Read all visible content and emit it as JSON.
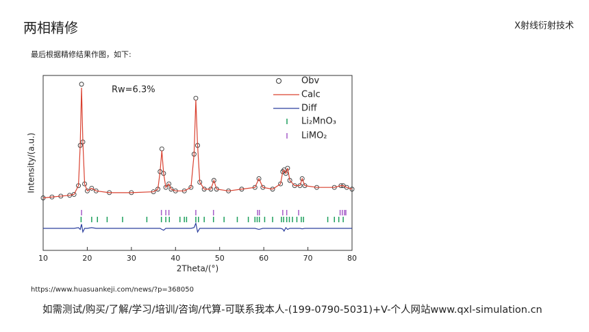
{
  "header": {
    "title": "两相精修",
    "topic": "X射线衍射技术"
  },
  "intro": "最后根据精修结果作图，如下:",
  "chart_data": {
    "type": "line",
    "xlabel": "2Theta/(°)",
    "ylabel": "Intensity/(a.u.)",
    "annotation": "Rw=6.3%",
    "xlim": [
      10,
      80
    ],
    "xticks": [
      10,
      20,
      30,
      40,
      50,
      60,
      70,
      80
    ],
    "ylim": [
      0,
      100
    ],
    "x": [
      10,
      12,
      14,
      16,
      17,
      18,
      18.4,
      18.7,
      19,
      19.4,
      20,
      21,
      22,
      25,
      30,
      35,
      36,
      36.5,
      36.9,
      37.3,
      37.8,
      38.5,
      39,
      40,
      42,
      43.5,
      44.2,
      44.6,
      45,
      45.5,
      46.5,
      48,
      48.7,
      49.3,
      52,
      55,
      58,
      58.9,
      59.8,
      62,
      63.8,
      64.3,
      64.6,
      65,
      65.4,
      65.9,
      67,
      68.2,
      68.7,
      69.3,
      72,
      76,
      77.5,
      78,
      78.8,
      80
    ],
    "series": [
      {
        "name": "Obv",
        "color": "#333333",
        "style": "marker",
        "values": [
          30,
          30.5,
          31,
          31.5,
          32,
          37,
          60,
          95,
          62,
          38,
          34,
          35.5,
          34,
          33,
          33,
          33.5,
          35,
          45,
          58,
          44,
          36,
          38,
          35,
          34,
          34,
          36,
          55,
          87,
          60,
          39,
          35,
          35,
          40,
          35,
          34,
          35,
          36,
          41,
          36,
          35,
          38,
          45,
          46,
          44,
          47,
          40,
          37,
          37,
          41,
          37,
          36,
          36,
          37,
          37,
          36,
          35
        ]
      },
      {
        "name": "Calc",
        "color": "#d9402f",
        "style": "line",
        "values": [
          30,
          30.5,
          31,
          31.5,
          32,
          37,
          60,
          93,
          62,
          38,
          34,
          35.5,
          34,
          33,
          33,
          33.5,
          35,
          45,
          57,
          44,
          36,
          38,
          35,
          34,
          34,
          36,
          55,
          86,
          60,
          39,
          35,
          35,
          40,
          35,
          34,
          35,
          36,
          41,
          36,
          35,
          38,
          45,
          46,
          44,
          47,
          40,
          37,
          37,
          41,
          37,
          36,
          36,
          37,
          37,
          36,
          35
        ]
      },
      {
        "name": "Diff",
        "color": "#2b3f9e",
        "style": "line",
        "values": [
          12.6,
          12.6,
          12.6,
          12.6,
          12.6,
          13,
          12,
          15,
          10.5,
          12.6,
          12.6,
          13,
          12.6,
          12.6,
          12.6,
          12.6,
          12.6,
          12.6,
          12,
          11.5,
          12.6,
          12.6,
          12.6,
          12.6,
          12.6,
          12.6,
          13,
          15.5,
          10.5,
          12.6,
          12.6,
          12.6,
          12.6,
          12.6,
          12.6,
          12.6,
          12.6,
          12,
          12.6,
          12.6,
          12.6,
          12.2,
          11,
          13,
          12,
          12.6,
          12.6,
          12.6,
          12.3,
          12.6,
          12.6,
          12.6,
          12.6,
          12.6,
          12.6,
          12.6
        ]
      }
    ],
    "phases": [
      {
        "name": "Li₂MnO₃",
        "color": "#1a9e5a",
        "positions": [
          18.6,
          21,
          22.3,
          24.5,
          28,
          33.5,
          36.8,
          37.8,
          38.6,
          41,
          42,
          42.5,
          44.6,
          45.2,
          46.5,
          48.6,
          51,
          54,
          56.5,
          58,
          58.5,
          59,
          60.2,
          62,
          64,
          64.5,
          65.2,
          65.8,
          66.5,
          67.5,
          68.5,
          69,
          74.5,
          76,
          77,
          78
        ]
      },
      {
        "name": "LiMO₂",
        "color": "#a35ac7",
        "positions": [
          18.7,
          36.8,
          37.8,
          38.5,
          44.6,
          48.6,
          58.6,
          59,
          64.3,
          65.2,
          67.9,
          77.3,
          77.8,
          78.3,
          78.6
        ]
      }
    ]
  },
  "source": "https://www.huasuankeji.com/news/?p=368050",
  "footer": "如需测试/购买/了解/学习/培训/咨询/代算-可联系我本人-(199-0790-5031)+V-个人网站www.qxl-simulation.cn"
}
